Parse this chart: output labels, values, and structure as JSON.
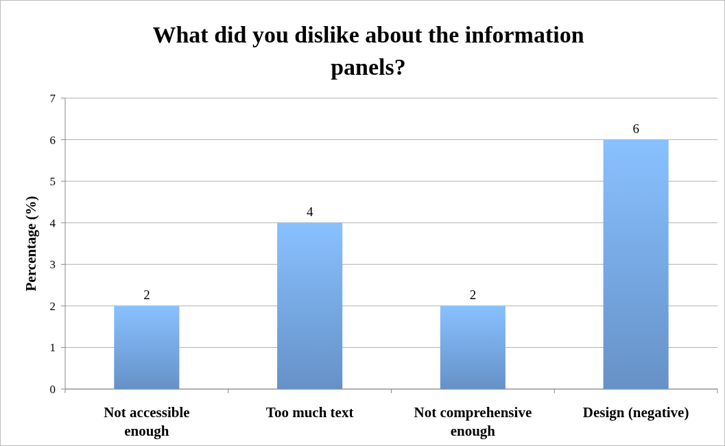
{
  "chart_data": {
    "type": "bar",
    "title": "What did you dislike about the information panels?",
    "ylabel": "Percentage (%)",
    "categories": [
      "Not accessible enough",
      "Too much text",
      "Not comprehensive enough",
      "Design (negative)"
    ],
    "values": [
      2,
      4,
      2,
      6
    ],
    "color": "#78aaea",
    "ylim": [
      0,
      7
    ],
    "yticks": [
      0,
      1,
      2,
      3,
      4,
      5,
      6,
      7
    ],
    "grid": "y",
    "data_labels": true
  }
}
